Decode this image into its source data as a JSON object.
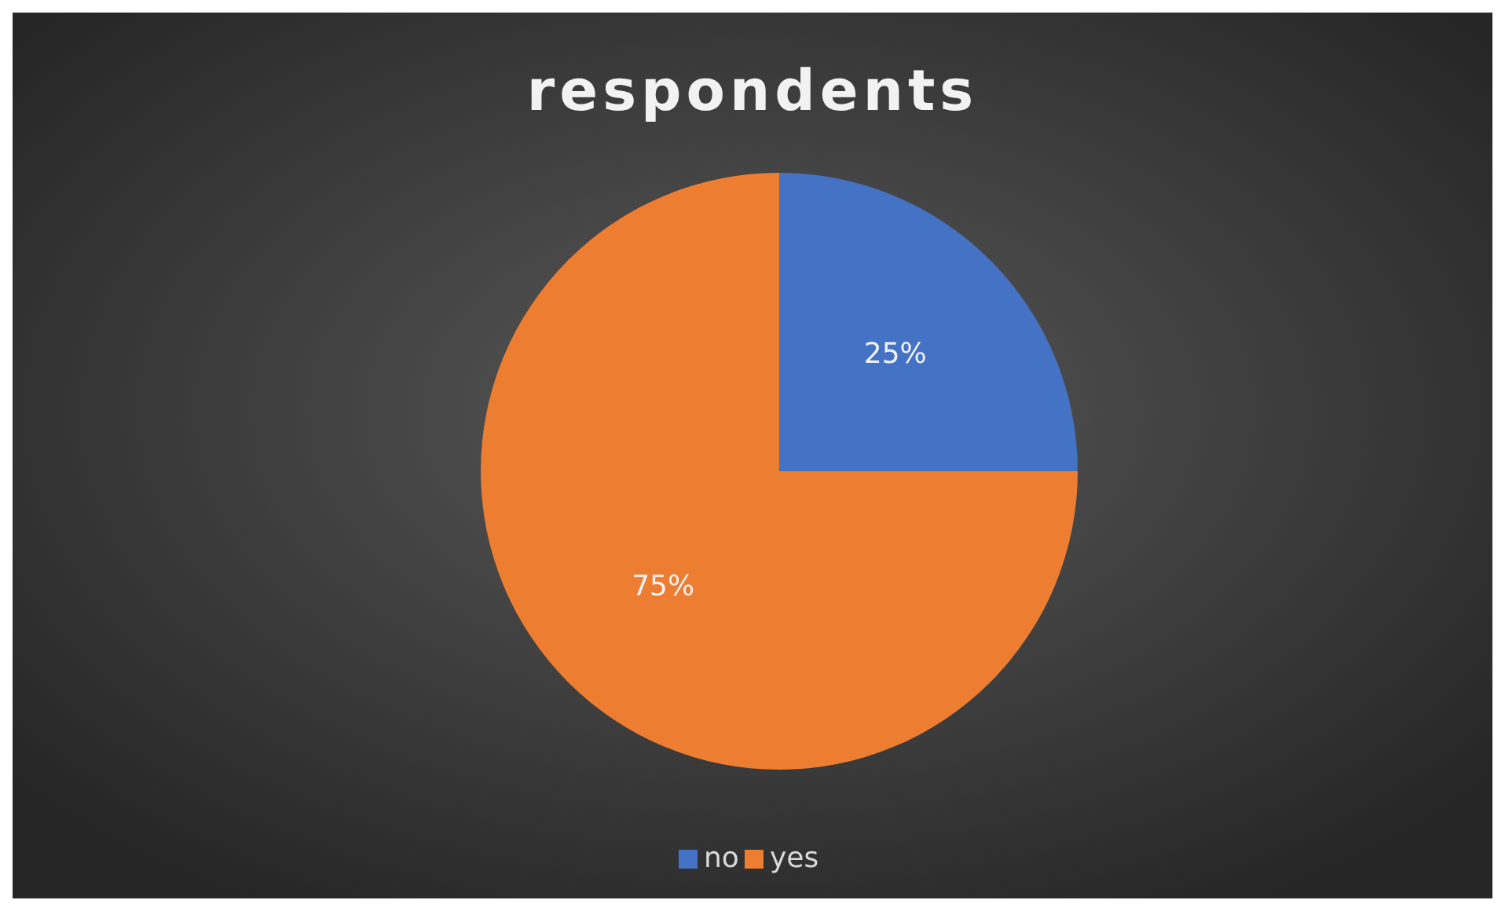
{
  "chart_data": {
    "type": "pie",
    "title": "respondents",
    "categories": [
      "no",
      "yes"
    ],
    "values": [
      25,
      75
    ],
    "colors": [
      "#4472c4",
      "#ed7d31"
    ],
    "value_labels": [
      "25%",
      "75%"
    ],
    "legend": "bottom"
  }
}
